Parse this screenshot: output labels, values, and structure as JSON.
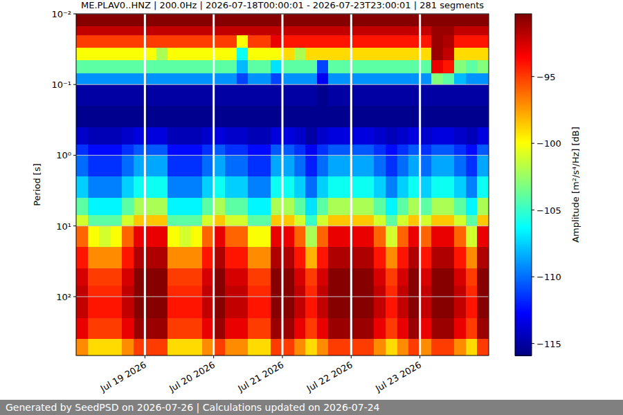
{
  "chart_data": {
    "type": "heatmap",
    "title": "ME.PLAV0..HNZ | 200.0Hz | 2026-07-18T00:00:01 - 2026-07-23T23:00:01 | 281 segments",
    "y_label": "Period [s]",
    "footer": "Generated by SeedPSD on 2026-07-26 | Calculations updated on 2026-07-24",
    "log": "y",
    "grid": true,
    "xlim": [
      "2026-07-18T00:00",
      "2026-07-24T00:00"
    ],
    "xticks": [
      {
        "value": "2026-07-19T00:00",
        "label": "Jul 19 2026"
      },
      {
        "value": "2026-07-20T00:00",
        "label": "Jul 20 2026"
      },
      {
        "value": "2026-07-21T00:00",
        "label": "Jul 21 2026"
      },
      {
        "value": "2026-07-22T00:00",
        "label": "Jul 22 2026"
      },
      {
        "value": "2026-07-23T00:00",
        "label": "Jul 23 2026"
      }
    ],
    "ylim": [
      680,
      0.01
    ],
    "yticks": [
      {
        "value": 0.01,
        "label": "10⁻²"
      },
      {
        "value": 0.1,
        "label": "10⁻¹"
      },
      {
        "value": 1,
        "label": "10⁰"
      },
      {
        "value": 10,
        "label": "10¹"
      },
      {
        "value": 100,
        "label": "10²"
      }
    ],
    "colorbar": {
      "label": "Amplitude [m²/s⁴/Hz] [dB]",
      "lim": [
        -115.9,
        -90.3
      ],
      "ticks": [
        {
          "value": -95,
          "label": "−95"
        },
        {
          "value": -100,
          "label": "−100"
        },
        {
          "value": -105,
          "label": "−105"
        },
        {
          "value": -110,
          "label": "−110"
        },
        {
          "value": -115,
          "label": "−115"
        }
      ]
    },
    "x_edges": [
      "2026-07-18T00:00",
      "2026-07-18T04:00",
      "2026-07-18T08:00",
      "2026-07-18T12:00",
      "2026-07-18T16:00",
      "2026-07-18T20:00",
      "2026-07-19T00:00",
      "2026-07-19T04:00",
      "2026-07-19T08:00",
      "2026-07-19T12:00",
      "2026-07-19T16:00",
      "2026-07-19T20:00",
      "2026-07-20T00:00",
      "2026-07-20T04:00",
      "2026-07-20T08:00",
      "2026-07-20T12:00",
      "2026-07-20T16:00",
      "2026-07-20T20:00",
      "2026-07-21T00:00",
      "2026-07-21T04:00",
      "2026-07-21T08:00",
      "2026-07-21T12:00",
      "2026-07-21T16:00",
      "2026-07-21T20:00",
      "2026-07-22T00:00",
      "2026-07-22T04:00",
      "2026-07-22T08:00",
      "2026-07-22T12:00",
      "2026-07-22T16:00",
      "2026-07-22T20:00",
      "2026-07-23T00:00",
      "2026-07-23T04:00",
      "2026-07-23T08:00",
      "2026-07-23T12:00",
      "2026-07-23T16:00",
      "2026-07-23T20:00",
      "2026-07-24T00:00"
    ],
    "y_edges": [
      0.01,
      0.015,
      0.02,
      0.03,
      0.045,
      0.07,
      0.1,
      0.2,
      0.4,
      0.7,
      1,
      2,
      4,
      7,
      10,
      20,
      40,
      70,
      100,
      200,
      400,
      680
    ],
    "cells": [
      [
        -90.5,
        -90.5,
        -90.5,
        -90.5,
        -90.5,
        -90.5,
        -90.5,
        -90.5,
        -90.5,
        -90.5,
        -90.5,
        -90.5,
        -90.5,
        -90.5,
        -90.5,
        -90.5,
        -90.5,
        -90.5,
        -90.5,
        -90.5,
        -90.5,
        -90.5,
        -90.5,
        -90.5,
        -90.5,
        -90.5,
        -90.5,
        -90.5,
        -90.5,
        -90.5,
        -90.5,
        -90.5,
        -90.5,
        -90.5,
        -90.5,
        -90.5
      ],
      [
        -92,
        -92,
        -92,
        -92,
        -92,
        -92,
        -92,
        -92,
        -92,
        -92,
        -92,
        -92,
        -92,
        -92,
        -92,
        -92,
        -92,
        -92,
        -92,
        -92,
        -92,
        -92,
        -92,
        -92,
        -92,
        -92,
        -92,
        -92,
        -92,
        -92,
        -92,
        -91,
        -91,
        -92,
        -92,
        -92
      ],
      [
        -95,
        -95,
        -95,
        -95,
        -95,
        -95,
        -95,
        -95,
        -95,
        -95,
        -95,
        -95,
        -95,
        -95,
        -100,
        -95,
        -95,
        -93,
        -94,
        -94,
        -94,
        -94,
        -94,
        -94,
        -94,
        -94,
        -94,
        -94,
        -94,
        -94,
        -94,
        -91,
        -91.5,
        -94,
        -94,
        -94
      ],
      [
        -100,
        -100,
        -100,
        -100,
        -100,
        -100,
        -100,
        -102,
        -100,
        -100,
        -100,
        -100,
        -100,
        -100,
        -106,
        -100,
        -100,
        -100,
        -99,
        -102,
        -99,
        -99,
        -99,
        -99,
        -99,
        -99,
        -99,
        -99,
        -99,
        -99,
        -99,
        -91,
        -92,
        -99,
        -99,
        -99
      ],
      [
        -104,
        -104,
        -104,
        -104,
        -104,
        -104,
        -104,
        -104,
        -104,
        -104,
        -104,
        -104,
        -104,
        -104,
        -108,
        -104,
        -104,
        -107,
        -104,
        -104,
        -104,
        -111,
        -104,
        -104,
        -104,
        -104,
        -104,
        -104,
        -104,
        -104,
        -104,
        -93,
        -94,
        -103,
        -104,
        -103
      ],
      [
        -109,
        -109,
        -109,
        -109,
        -109,
        -109,
        -109,
        -109,
        -109,
        -109,
        -109,
        -109,
        -109,
        -109,
        -111,
        -109,
        -109,
        -111,
        -109,
        -109,
        -109,
        -113,
        -109,
        -109,
        -109,
        -109,
        -109,
        -109,
        -109,
        -109,
        -109,
        -103,
        -104,
        -108,
        -109,
        -109
      ],
      [
        -115,
        -115,
        -115,
        -115,
        -115,
        -115,
        -115,
        -115,
        -115,
        -115,
        -115,
        -115,
        -115,
        -115,
        -115,
        -115,
        -115,
        -115,
        -115,
        -115,
        -115,
        -115.5,
        -115,
        -115,
        -115,
        -115,
        -115,
        -115,
        -115,
        -115,
        -115,
        -115,
        -115,
        -115,
        -115,
        -115
      ],
      [
        -115.5,
        -115.5,
        -115.5,
        -115.5,
        -115.5,
        -115.5,
        -115.5,
        -115.5,
        -115.5,
        -115.5,
        -115.5,
        -115.5,
        -115.5,
        -115.5,
        -115.5,
        -115.5,
        -115.5,
        -115.5,
        -115.5,
        -115.5,
        -115.5,
        -115.5,
        -115.5,
        -115.5,
        -115.5,
        -115.5,
        -115.5,
        -115.5,
        -115.5,
        -115.5,
        -115.5,
        -115.5,
        -115.5,
        -115.5,
        -115.5,
        -115.5
      ],
      [
        -114,
        -114.5,
        -114.5,
        -114.5,
        -114,
        -113.5,
        -113.5,
        -113.5,
        -114.5,
        -114.5,
        -114.5,
        -114,
        -113.5,
        -114,
        -114,
        -114.5,
        -114.5,
        -113.5,
        -113.5,
        -114,
        -115,
        -114,
        -113.5,
        -113.5,
        -113.5,
        -113.5,
        -114,
        -114.5,
        -114,
        -113.5,
        -114,
        -113.5,
        -113.5,
        -114,
        -114.5,
        -113.5
      ],
      [
        -111.5,
        -112.5,
        -112.5,
        -112.5,
        -111.5,
        -110.5,
        -110.5,
        -110.5,
        -112.5,
        -112.5,
        -112.5,
        -111.5,
        -110.5,
        -111.5,
        -111.5,
        -112.5,
        -112.5,
        -110.5,
        -110.5,
        -111.5,
        -113,
        -111.5,
        -110.5,
        -110.5,
        -110.5,
        -110.5,
        -111.5,
        -112.5,
        -111.5,
        -110.5,
        -111.5,
        -110.5,
        -110.5,
        -111.5,
        -112.5,
        -110.5
      ],
      [
        -110,
        -111.5,
        -111.5,
        -111.5,
        -110,
        -108.5,
        -108.5,
        -108.5,
        -111.5,
        -111.5,
        -111.5,
        -110,
        -108.5,
        -110,
        -110,
        -111.5,
        -111.5,
        -108.5,
        -108.5,
        -110,
        -112,
        -110,
        -108.5,
        -108.5,
        -108.5,
        -108.5,
        -110,
        -111.5,
        -110,
        -108.5,
        -110,
        -108.5,
        -108.5,
        -110,
        -111.5,
        -108.5
      ],
      [
        -107.5,
        -109.5,
        -109.5,
        -109.5,
        -107.5,
        -106,
        -106,
        -106,
        -109.5,
        -109.5,
        -109.5,
        -107.5,
        -106,
        -107.5,
        -107.5,
        -109.5,
        -109.5,
        -106,
        -106,
        -107.5,
        -110,
        -107.5,
        -106,
        -106,
        -106,
        -106,
        -107.5,
        -109.5,
        -107.5,
        -106,
        -107.5,
        -106,
        -106,
        -107.5,
        -109.5,
        -106
      ],
      [
        -104,
        -106.5,
        -106.5,
        -106.5,
        -104,
        -102,
        -102,
        -102,
        -106.5,
        -106.5,
        -106.5,
        -104,
        -102,
        -104,
        -104,
        -106.5,
        -106.5,
        -102,
        -102,
        -104,
        -107,
        -104,
        -102,
        -102,
        -102,
        -102,
        -104,
        -106.5,
        -104,
        -102,
        -104,
        -102,
        -102,
        -104,
        -106.5,
        -102
      ],
      [
        -101,
        -104,
        -104,
        -104,
        -101,
        -98.5,
        -98.5,
        -98.5,
        -104,
        -104,
        -104,
        -101,
        -98.5,
        -101,
        -101,
        -104,
        -104,
        -98.5,
        -98.5,
        -101,
        -105,
        -101,
        -98.5,
        -98.5,
        -98.5,
        -98.5,
        -101,
        -104,
        -101,
        -98.5,
        -101,
        -98.5,
        -98.5,
        -101,
        -104,
        -98.5
      ],
      [
        -96,
        -100,
        -101,
        -100,
        -96,
        -93,
        -93,
        -93,
        -100,
        -101,
        -100,
        -96,
        -93,
        -96,
        -96,
        -100,
        -100,
        -93,
        -93,
        -96,
        -102,
        -96,
        -93,
        -93,
        -93,
        -93,
        -96,
        -101,
        -96,
        -93,
        -96,
        -93,
        -93,
        -96,
        -101,
        -93
      ],
      [
        -94,
        -97,
        -97,
        -97,
        -94,
        -91.5,
        -91.5,
        -91.5,
        -97,
        -97,
        -97,
        -94,
        -91.5,
        -94,
        -94,
        -97,
        -97,
        -91.5,
        -91.5,
        -94,
        -98,
        -94,
        -91.5,
        -91.5,
        -91.5,
        -91.5,
        -94,
        -97,
        -94,
        -91.5,
        -94,
        -91.5,
        -91.5,
        -94,
        -97,
        -91.5
      ],
      [
        -92.5,
        -95,
        -95,
        -95,
        -92.5,
        -90.5,
        -90.5,
        -90.5,
        -95,
        -95,
        -95,
        -92.5,
        -90.5,
        -92.5,
        -92.5,
        -95,
        -95,
        -90.5,
        -90.5,
        -92.5,
        -95,
        -92.5,
        -90.5,
        -90.5,
        -90.5,
        -90.5,
        -92.5,
        -95,
        -92.5,
        -90.5,
        -92.5,
        -90.5,
        -90.5,
        -92.5,
        -95,
        -90.5
      ],
      [
        -92,
        -94.5,
        -94.5,
        -94.5,
        -92,
        -90.5,
        -90.5,
        -90.5,
        -94.5,
        -94.5,
        -94.5,
        -92,
        -90.5,
        -92,
        -92,
        -94.5,
        -94.5,
        -90.5,
        -90.5,
        -92,
        -94.5,
        -92,
        -90.5,
        -90.5,
        -90.5,
        -90.5,
        -92,
        -94.5,
        -92,
        -90.5,
        -92,
        -90.5,
        -90.5,
        -92,
        -94.5,
        -90.5
      ],
      [
        -92,
        -94,
        -94,
        -94,
        -92,
        -90.5,
        -90.5,
        -90.5,
        -94,
        -94,
        -94,
        -92,
        -90.5,
        -92,
        -92,
        -94,
        -94,
        -90.5,
        -90.5,
        -92,
        -94,
        -92,
        -90.5,
        -90.5,
        -90.5,
        -90.5,
        -92,
        -94,
        -92,
        -90.5,
        -92,
        -90.5,
        -90.5,
        -92,
        -94,
        -90.5
      ],
      [
        -93,
        -95,
        -95,
        -95,
        -93,
        -91,
        -91,
        -91,
        -95,
        -95,
        -95,
        -93,
        -91,
        -93,
        -93,
        -95,
        -95,
        -91,
        -91,
        -93,
        -95,
        -93,
        -91,
        -91,
        -91,
        -91,
        -93,
        -95,
        -93,
        -91,
        -93,
        -91,
        -91,
        -93,
        -95,
        -91
      ],
      [
        -97,
        -99,
        -99,
        -99,
        -97,
        -95,
        -95,
        -95,
        -99,
        -99,
        -99,
        -97,
        -95,
        -97,
        -97,
        -99,
        -99,
        -95,
        -95,
        -97,
        -99,
        -97,
        -95,
        -95,
        -95,
        -95,
        -97,
        -99,
        -97,
        -95,
        -97,
        -95,
        -95,
        -97,
        -99,
        -95
      ]
    ]
  }
}
